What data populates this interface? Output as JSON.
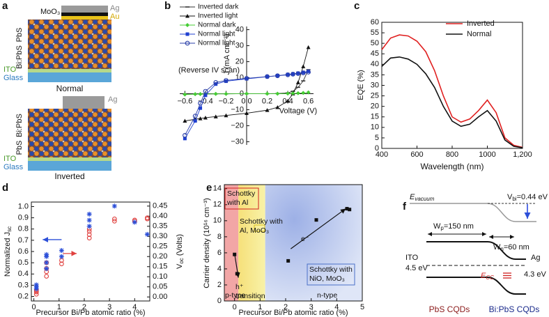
{
  "panel_a": {
    "label": "a",
    "normal": {
      "ag": "Ag",
      "moo3": "MoO₃",
      "au": "Au",
      "pbs": "PbS",
      "bipbs": "Bi:PbS",
      "ito": "ITO",
      "glass": "Glass",
      "caption": "Normal"
    },
    "inverted": {
      "ag": "Ag",
      "bipbs": "Bi:PbS",
      "pbs": "PbS",
      "ito": "ITO",
      "glass": "Glass",
      "caption": "Inverted"
    }
  },
  "chart_data": [
    {
      "label": "b",
      "type": "line",
      "axes": "crossing",
      "x_label": "Voltage (V)",
      "y_label": "J (mA cm⁻²)",
      "annotation": "(Reverse IV scan)",
      "x": [
        -0.6,
        -0.5,
        -0.45,
        -0.4,
        -0.3,
        -0.2,
        0,
        0.2,
        0.3,
        0.4,
        0.45,
        0.5,
        0.55,
        0.6
      ],
      "series": [
        {
          "name": "Inverted dark",
          "color": "#333333",
          "marker": "dash",
          "values": [
            -0.3,
            -0.2,
            -0.2,
            -0.2,
            -0.1,
            -0.1,
            0,
            0,
            0.1,
            0.5,
            1.5,
            4,
            8,
            15
          ]
        },
        {
          "name": "Inverted light",
          "color": "#111111",
          "marker": "triangle",
          "values": [
            -17,
            -16,
            -15.5,
            -15,
            -14.3,
            -13.6,
            -12.2,
            -10.3,
            -8.5,
            -4.5,
            0,
            7,
            17,
            29
          ]
        },
        {
          "name": "Normal dark",
          "color": "#44cc33",
          "marker": "diamond",
          "values": [
            -0.5,
            -0.3,
            -0.2,
            -0.2,
            -0.1,
            -0.1,
            0,
            0,
            0,
            0.1,
            0.2,
            0.3,
            0.5,
            0.8
          ]
        },
        {
          "name": "Normal light",
          "color": "#1f3fd0",
          "marker": "square",
          "values": [
            -28,
            -17,
            -9,
            -1,
            6,
            7.8,
            9.3,
            10.6,
            11.3,
            12,
            12.4,
            12.8,
            13.3,
            14
          ]
        },
        {
          "name": "Normal light",
          "color": "#2a3fa8",
          "marker": "circle-open",
          "values": [
            -26,
            -14,
            -6,
            1.5,
            7,
            8.3,
            9.6,
            10.7,
            11.2,
            11.8,
            12.2,
            12.6,
            13,
            13.5
          ]
        }
      ],
      "xlim": [
        -0.65,
        0.65
      ],
      "ylim": [
        -32,
        42
      ],
      "xticks": [
        {
          "value": -0.6,
          "label": "−0.6"
        },
        {
          "value": -0.4,
          "label": "−0.4"
        },
        {
          "value": -0.2,
          "label": "−0.2"
        },
        {
          "value": 0,
          "label": "0.0"
        },
        0.2,
        0.4,
        0.6
      ],
      "yticks": [
        {
          "value": -30,
          "label": "−30"
        },
        {
          "value": -20,
          "label": "−20"
        },
        {
          "value": -10,
          "label": "−10"
        },
        0,
        10,
        20,
        30,
        40
      ],
      "legend": "upper left"
    },
    {
      "label": "c",
      "type": "line",
      "x_label": "Wavelength (nm)",
      "y_label": "EQE (%)",
      "x": [
        400,
        450,
        500,
        550,
        600,
        650,
        700,
        750,
        800,
        850,
        900,
        950,
        1000,
        1050,
        1100,
        1150,
        1200
      ],
      "series": [
        {
          "name": "Inverted",
          "color": "#e02020",
          "values": [
            47,
            52.5,
            54,
            53.5,
            51,
            46,
            37,
            25,
            15,
            12.5,
            14,
            18,
            23,
            17,
            5,
            1.5,
            0.5
          ]
        },
        {
          "name": "Normal",
          "color": "#111111",
          "values": [
            39,
            43,
            43.5,
            42.5,
            40,
            35.5,
            29,
            20,
            13,
            10.5,
            11.5,
            15,
            18,
            13,
            4,
            1,
            0.3
          ]
        }
      ],
      "xlim": [
        400,
        1200
      ],
      "ylim": [
        0,
        60
      ],
      "xticks": [
        400,
        600,
        800,
        1000,
        {
          "value": 1200,
          "label": "1,200"
        }
      ],
      "yticks": [
        0,
        5,
        10,
        15,
        20,
        25,
        30,
        35,
        40,
        45,
        50,
        55,
        60
      ],
      "legend": "upper right"
    },
    {
      "label": "d",
      "type": "scatter",
      "x_label": "Precursor Bi/Pb atomic ratio (%)",
      "y_label": {
        "main": "Normalized J",
        "sub": "sc"
      },
      "y2_label": {
        "main": "V",
        "sub": "oc",
        "rest": " (Volts)"
      },
      "series": [
        {
          "color": "#e0413f",
          "marker": "circle-open",
          "x": [
            0.1,
            0.1,
            0.1,
            0.1,
            0.5,
            0.5,
            0.5,
            0.5,
            1.1,
            1.1,
            2.2,
            2.2,
            2.2,
            2.2,
            3.2,
            3.2,
            4,
            4,
            4.5,
            4.5
          ],
          "values": [
            0.22,
            0.24,
            0.25,
            0.26,
            0.38,
            0.42,
            0.45,
            0.5,
            0.49,
            0.52,
            0.72,
            0.75,
            0.78,
            0.8,
            0.87,
            0.89,
            0.87,
            0.88,
            0.89,
            0.9
          ]
        },
        {
          "color": "#2c4fd8",
          "marker": "asterisk",
          "axis": "y2",
          "x": [
            0.1,
            0.1,
            0.1,
            0.5,
            0.5,
            0.5,
            0.5,
            1.1,
            1.1,
            2.2,
            2.2,
            2.2,
            3.2,
            4,
            4.5
          ],
          "values": [
            0.04,
            0.05,
            0.06,
            0.14,
            0.17,
            0.2,
            0.21,
            0.2,
            0.23,
            0.35,
            0.38,
            0.41,
            0.45,
            0.37,
            0.31
          ]
        }
      ],
      "xlim": [
        -0.1,
        4.6
      ],
      "ylim": [
        0.16,
        1.04
      ],
      "y2lim": [
        -0.02,
        0.47
      ],
      "xticks": [
        0,
        1,
        2,
        3,
        4
      ],
      "yticks": [
        0.2,
        0.3,
        0.4,
        0.5,
        0.6,
        0.7,
        0.8,
        0.9,
        {
          "value": 1,
          "label": "1.0"
        }
      ],
      "y2ticks": [
        {
          "value": 0,
          "label": "0.00"
        },
        0.05,
        {
          "value": 0.1,
          "label": "0.10"
        },
        0.15,
        {
          "value": 0.2,
          "label": "0.20"
        },
        0.25,
        {
          "value": 0.3,
          "label": "0.30"
        },
        0.35,
        {
          "value": 0.4,
          "label": "0.40"
        },
        0.45
      ]
    },
    {
      "label": "e",
      "type": "scatter",
      "x_label": "Precursor Bi/Pb atomic ratio (%)",
      "y_label": "Carrier density (10¹⁶ cm⁻³)",
      "annotations": {
        "schottky_al": [
          "Schottky",
          "with Al"
        ],
        "schottky_al_moo3": [
          "Schottky with",
          "Al, MoO₃"
        ],
        "schottky_nio": [
          "Schottky with",
          "NiO, MoO₃"
        ],
        "h_transition": [
          "h⁺",
          "transition"
        ],
        "electron": "e⁻",
        "p_type": "p-type",
        "n_type": "n-type"
      },
      "series": [
        {
          "color": "#111111",
          "marker": "square",
          "x": [
            0,
            0.1,
            2.1,
            3.2,
            4.4,
            4.5
          ],
          "values": [
            5.8,
            3.4,
            5,
            10.1,
            11.5,
            11.4
          ]
        }
      ],
      "xlim": [
        -0.4,
        5
      ],
      "ylim": [
        0,
        14.5
      ],
      "xticks": [
        0,
        1,
        2,
        3,
        4,
        5
      ],
      "yticks": [
        0,
        2,
        4,
        6,
        8,
        10,
        12,
        14
      ]
    }
  ],
  "panel_f": {
    "label": "f",
    "e_vacuum": {
      "main": "E",
      "sub": "vacuum"
    },
    "v_bi": {
      "main": "V",
      "sub": "bi",
      "rest": "=0.44 eV"
    },
    "w_p": {
      "main": "W",
      "sub": "p",
      "rest": "=150 nm"
    },
    "w_n": {
      "main": "W",
      "sub": "n",
      "rest": "=60 nm"
    },
    "ito": "ITO",
    "ito_wf": "4.5 eV",
    "ag": "Ag",
    "ag_wf": "4.3 eV",
    "e_cc": {
      "main": "E",
      "sub": "CC"
    },
    "pbs": "PbS CQDs",
    "bipbs": "Bi:PbS CQDs"
  }
}
